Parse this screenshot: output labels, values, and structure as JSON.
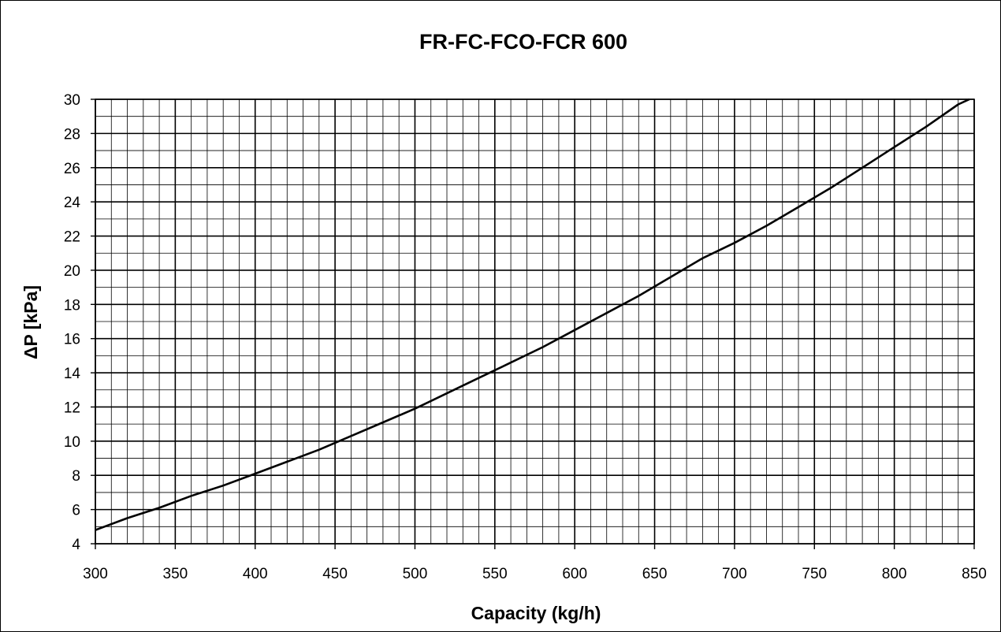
{
  "chart_data": {
    "type": "line",
    "title": "FR-FC-FCO-FCR 600",
    "xlabel": "Capacity (kg/h)",
    "ylabel": "ΔP [kPa]",
    "xlim": [
      300,
      850
    ],
    "ylim": [
      4,
      30
    ],
    "x_ticks": [
      300,
      350,
      400,
      450,
      500,
      550,
      600,
      650,
      700,
      750,
      800,
      850
    ],
    "y_ticks": [
      4,
      6,
      8,
      10,
      12,
      14,
      16,
      18,
      20,
      22,
      24,
      26,
      28,
      30
    ],
    "x_minor_step": 10,
    "y_minor_step": 1,
    "grid": true,
    "series": [
      {
        "x": [
          300,
          320,
          340,
          360,
          380,
          400,
          420,
          440,
          460,
          480,
          500,
          520,
          540,
          560,
          580,
          600,
          620,
          640,
          660,
          680,
          700,
          720,
          740,
          760,
          780,
          800,
          820,
          840,
          847
        ],
        "values": [
          4.8,
          5.5,
          6.1,
          6.8,
          7.4,
          8.1,
          8.8,
          9.5,
          10.3,
          11.1,
          11.9,
          12.8,
          13.7,
          14.6,
          15.5,
          16.5,
          17.5,
          18.5,
          19.6,
          20.7,
          21.6,
          22.6,
          23.7,
          24.8,
          26.0,
          27.2,
          28.4,
          29.7,
          30.0
        ],
        "color": "#000000"
      }
    ]
  }
}
